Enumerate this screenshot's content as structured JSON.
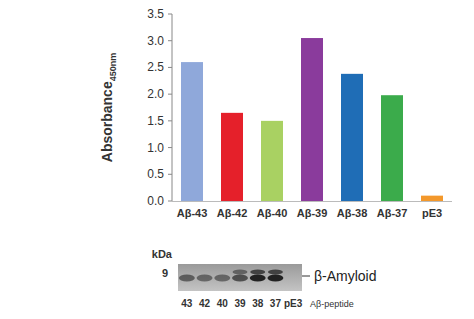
{
  "chart_data": {
    "type": "bar",
    "y_label": "Absorbance",
    "y_label_sub": "450nm",
    "categories": [
      "Aβ-43",
      "Aβ-42",
      "Aβ-40",
      "Aβ-39",
      "Aβ-38",
      "Aβ-37",
      "pE3"
    ],
    "values": [
      2.6,
      1.65,
      1.5,
      3.05,
      2.38,
      1.98,
      0.1
    ],
    "colors": [
      "#8fa8da",
      "#e5202a",
      "#a9d162",
      "#8a3b9c",
      "#1f6db6",
      "#3bab4b",
      "#f3982b"
    ],
    "ylim": [
      0,
      3.5
    ],
    "yticks": [
      {
        "value": 0,
        "label": "0.0"
      },
      {
        "value": 0.5,
        "label": "0.5"
      },
      {
        "value": 1,
        "label": "1.0"
      },
      {
        "value": 1.5,
        "label": "1.5"
      },
      {
        "value": 2,
        "label": "2.0"
      },
      {
        "value": 2.5,
        "label": "2.5"
      },
      {
        "value": 3,
        "label": "3.0"
      },
      {
        "value": 3.5,
        "label": "3.5"
      }
    ],
    "grid": false
  },
  "blot": {
    "unit_label": "kDa",
    "marker": 9,
    "band_label": "β-Amyloid",
    "lanes": [
      "43",
      "42",
      "40",
      "39",
      "38",
      "37",
      "pE3"
    ],
    "lanes_label": "Aβ-peptide"
  }
}
